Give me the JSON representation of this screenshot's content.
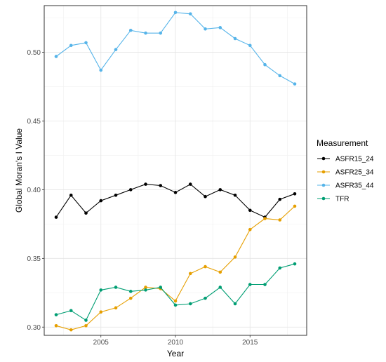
{
  "chart_data": {
    "type": "line",
    "xlabel": "Year",
    "ylabel": "Global Moran's I Value",
    "xlim": [
      2001.2,
      2018.8
    ],
    "ylim": [
      0.294,
      0.534
    ],
    "xticks": [
      2005,
      2010,
      2015
    ],
    "xtick_labels": [
      "2005",
      "2010",
      "2015"
    ],
    "yticks": [
      0.3,
      0.35,
      0.4,
      0.45,
      0.5
    ],
    "ytick_labels": [
      "0.30",
      "0.35",
      "0.40",
      "0.45",
      "0.50"
    ],
    "grid": true,
    "legend": {
      "title": "Measurement",
      "position": "right"
    },
    "x": [
      2002,
      2003,
      2004,
      2005,
      2006,
      2007,
      2008,
      2009,
      2010,
      2011,
      2012,
      2013,
      2014,
      2015,
      2016,
      2017,
      2018
    ],
    "series": [
      {
        "name": "ASFR15_24",
        "color": "#000000",
        "values": [
          0.38,
          0.396,
          0.383,
          0.392,
          0.396,
          0.4,
          0.404,
          0.403,
          0.398,
          0.404,
          0.395,
          0.4,
          0.396,
          0.385,
          0.38,
          0.393,
          0.397
        ]
      },
      {
        "name": "ASFR25_34",
        "color": "#E69F00",
        "values": [
          0.301,
          0.298,
          0.301,
          0.311,
          0.314,
          0.321,
          0.329,
          0.328,
          0.319,
          0.339,
          0.344,
          0.34,
          0.351,
          0.371,
          0.379,
          0.378,
          0.388
        ]
      },
      {
        "name": "ASFR35_44",
        "color": "#56B4E9",
        "values": [
          0.497,
          0.505,
          0.507,
          0.487,
          0.502,
          0.516,
          0.514,
          0.514,
          0.529,
          0.528,
          0.517,
          0.518,
          0.51,
          0.505,
          0.491,
          0.483,
          0.477
        ]
      },
      {
        "name": "TFR",
        "color": "#009E73",
        "values": [
          0.309,
          0.312,
          0.305,
          0.327,
          0.329,
          0.326,
          0.327,
          0.329,
          0.316,
          0.317,
          0.321,
          0.329,
          0.317,
          0.331,
          0.331,
          0.343,
          0.346
        ]
      }
    ]
  }
}
